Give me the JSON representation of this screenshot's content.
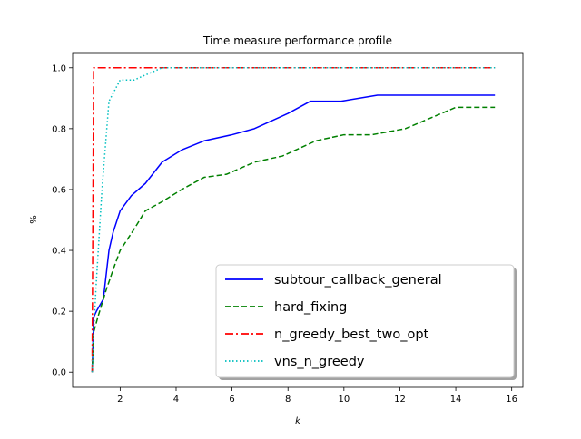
{
  "chart_data": {
    "type": "line",
    "title": "Time measure performance profile",
    "xlabel": "k",
    "ylabel": "%",
    "xlim": [
      0.3,
      16.4
    ],
    "ylim": [
      -0.05,
      1.05
    ],
    "xticks": [
      2,
      4,
      6,
      8,
      10,
      12,
      14,
      16
    ],
    "xtick_labels": [
      "2",
      "4",
      "6",
      "8",
      "10",
      "12",
      "14",
      "16"
    ],
    "yticks": [
      0.0,
      0.2,
      0.4,
      0.6,
      0.8,
      1.0
    ],
    "ytick_labels": [
      "0.0",
      "0.2",
      "0.4",
      "0.6",
      "0.8",
      "1.0"
    ],
    "grid": false,
    "legend_position": "lower-right",
    "series": [
      {
        "name": "subtour_callback_general",
        "color": "#0000ff",
        "dash": "solid",
        "x": [
          1.0,
          1.05,
          1.15,
          1.4,
          1.6,
          1.75,
          2.0,
          2.4,
          2.9,
          3.5,
          4.2,
          5.0,
          6.0,
          6.8,
          8.0,
          8.8,
          9.9,
          11.2,
          12.1,
          14.0,
          15.4
        ],
        "y": [
          0.0,
          0.18,
          0.2,
          0.24,
          0.4,
          0.46,
          0.53,
          0.58,
          0.62,
          0.69,
          0.73,
          0.76,
          0.78,
          0.8,
          0.85,
          0.89,
          0.89,
          0.91,
          0.91,
          0.91,
          0.91
        ]
      },
      {
        "name": "hard_fixing",
        "color": "#008000",
        "dash": "dashed",
        "x": [
          1.0,
          1.05,
          1.2,
          1.5,
          1.8,
          2.0,
          2.5,
          2.9,
          3.5,
          4.2,
          5.0,
          5.8,
          6.8,
          7.8,
          9.0,
          10.0,
          11.0,
          12.2,
          14.0,
          15.4
        ],
        "y": [
          0.0,
          0.13,
          0.18,
          0.27,
          0.35,
          0.4,
          0.47,
          0.53,
          0.56,
          0.6,
          0.64,
          0.65,
          0.69,
          0.71,
          0.76,
          0.78,
          0.78,
          0.8,
          0.87,
          0.87
        ]
      },
      {
        "name": "n_greedy_best_two_opt",
        "color": "#ff0000",
        "dash": "dashdot",
        "x": [
          1.0,
          1.0,
          1.05,
          15.4
        ],
        "y": [
          0.0,
          0.07,
          1.0,
          1.0
        ]
      },
      {
        "name": "vns_n_greedy",
        "color": "#00bfbf",
        "dash": "dotted",
        "x": [
          1.0,
          1.05,
          1.15,
          1.35,
          1.6,
          2.0,
          2.5,
          3.0,
          3.5,
          4.5,
          15.4
        ],
        "y": [
          0.0,
          0.13,
          0.3,
          0.6,
          0.89,
          0.96,
          0.96,
          0.98,
          1.0,
          1.0,
          1.0
        ]
      }
    ]
  }
}
